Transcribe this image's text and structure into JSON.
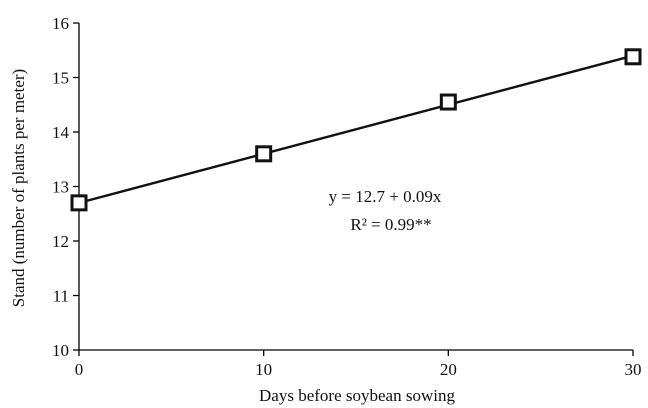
{
  "chart_data": {
    "type": "line",
    "title": "",
    "xlabel": "Days before soybean sowing",
    "ylabel": "Stand (number of plants per meter)",
    "xlim": [
      0,
      30
    ],
    "ylim": [
      10,
      16
    ],
    "x_ticks": [
      0,
      10,
      20,
      30
    ],
    "y_ticks": [
      10,
      11,
      12,
      13,
      14,
      15,
      16
    ],
    "grid": false,
    "series": [
      {
        "x": [
          0,
          10,
          20,
          30
        ],
        "y": [
          12.7,
          13.6,
          14.55,
          15.38
        ],
        "marker": "open-square",
        "color": "#111111"
      }
    ],
    "fit_line": {
      "x": [
        0,
        30
      ],
      "y": [
        12.7,
        15.4
      ]
    },
    "annotations": {
      "equation": "y = 12.7 + 0.09x",
      "r_squared": "R² = 0.99**"
    }
  }
}
